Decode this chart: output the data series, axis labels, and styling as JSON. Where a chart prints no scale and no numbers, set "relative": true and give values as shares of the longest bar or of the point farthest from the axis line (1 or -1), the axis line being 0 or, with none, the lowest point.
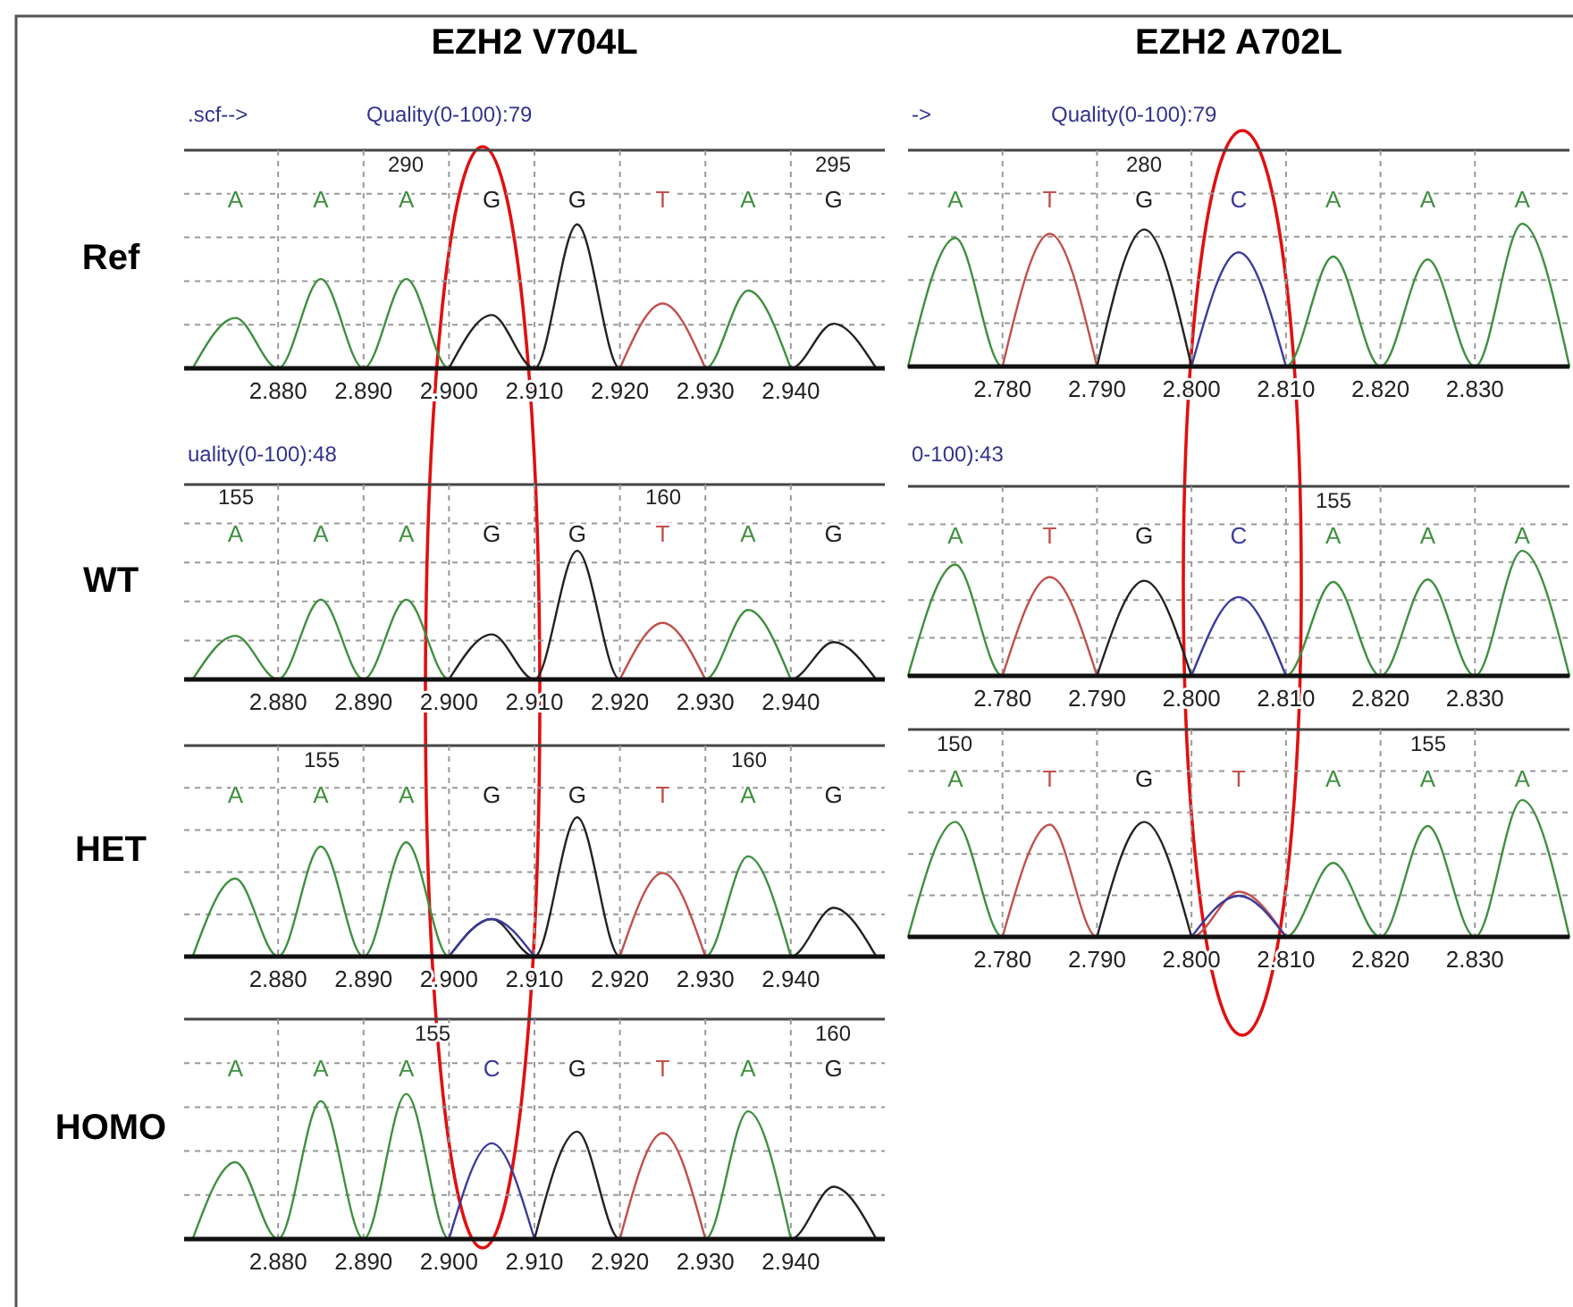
{
  "chart_data": [
    {
      "type": "line",
      "relative": true,
      "title": "EZH2 V704L",
      "ylabel": "Ref",
      "grid": true,
      "xlim": [
        2.869,
        2.951
      ],
      "xticks": [
        {
          "value": 2.88,
          "label": "2.880"
        },
        {
          "value": 2.89,
          "label": "2.890"
        },
        {
          "value": 2.9,
          "label": "2.900"
        },
        {
          "value": 2.91,
          "label": "2.910"
        },
        {
          "value": 2.92,
          "label": "2.920"
        },
        {
          "value": 2.93,
          "label": "2.930"
        },
        {
          "value": 2.94,
          "label": "2.940"
        }
      ],
      "series": [
        {
          "color": "#3f8f3f",
          "x": [
            2.87,
            2.875,
            2.88,
            2.885,
            2.89,
            2.895,
            2.9,
            2.93,
            2.935,
            2.94
          ],
          "values": [
            0,
            0.35,
            0,
            0.62,
            0,
            0.62,
            0,
            0,
            0.54,
            0
          ]
        },
        {
          "color": "#222222",
          "x": [
            2.9,
            2.905,
            2.91,
            2.915,
            2.92,
            2.94,
            2.945,
            2.95
          ],
          "values": [
            0,
            0.37,
            0,
            1,
            0,
            0,
            0.31,
            0
          ]
        },
        {
          "color": "#c0504d",
          "x": [
            2.92,
            2.925,
            2.93
          ],
          "values": [
            0,
            0.45,
            0
          ]
        }
      ],
      "annotations": [
        ".scf-->",
        "Quality(0-100):79",
        "290",
        "295",
        "A",
        "A",
        "A",
        "G",
        "G",
        "T",
        "A",
        "G"
      ]
    },
    {
      "type": "line",
      "relative": true,
      "title": "EZH2 A702L",
      "grid": true,
      "xlim": [
        2.77,
        2.84
      ],
      "xticks": [
        {
          "value": 2.78,
          "label": "2.780"
        },
        {
          "value": 2.79,
          "label": "2.790"
        },
        {
          "value": 2.8,
          "label": "2.800"
        },
        {
          "value": 2.81,
          "label": "2.810"
        },
        {
          "value": 2.82,
          "label": "2.820"
        },
        {
          "value": 2.83,
          "label": "2.830"
        }
      ],
      "series": [
        {
          "color": "#3f8f3f",
          "x": [
            2.77,
            2.775,
            2.78,
            2.81,
            2.815,
            2.82,
            2.825,
            2.83,
            2.835,
            2.84
          ],
          "values": [
            0,
            0.9,
            0,
            0,
            0.77,
            0,
            0.75,
            0,
            1,
            0
          ]
        },
        {
          "color": "#c0504d",
          "x": [
            2.78,
            2.785,
            2.79
          ],
          "values": [
            0,
            0.93,
            0
          ]
        },
        {
          "color": "#222222",
          "x": [
            2.79,
            2.795,
            2.8
          ],
          "values": [
            0,
            0.96,
            0
          ]
        },
        {
          "color": "#3b3b9a",
          "x": [
            2.8,
            2.805,
            2.81
          ],
          "values": [
            0,
            0.8,
            0
          ]
        }
      ],
      "annotations": [
        "->",
        "Quality(0-100):79",
        "280",
        "A",
        "T",
        "G",
        "C",
        "A",
        "A",
        "A"
      ]
    },
    {
      "type": "line",
      "relative": true,
      "ylabel": "WT",
      "grid": true,
      "xlim": [
        2.869,
        2.951
      ],
      "xticks": [
        {
          "value": 2.88,
          "label": "2.880"
        },
        {
          "value": 2.89,
          "label": "2.890"
        },
        {
          "value": 2.9,
          "label": "2.900"
        },
        {
          "value": 2.91,
          "label": "2.910"
        },
        {
          "value": 2.92,
          "label": "2.920"
        },
        {
          "value": 2.93,
          "label": "2.930"
        },
        {
          "value": 2.94,
          "label": "2.940"
        }
      ],
      "series": [
        {
          "color": "#3f8f3f",
          "x": [
            2.87,
            2.875,
            2.88,
            2.885,
            2.89,
            2.895,
            2.9,
            2.93,
            2.935,
            2.94
          ],
          "values": [
            0,
            0.34,
            0,
            0.62,
            0,
            0.62,
            0,
            0,
            0.54,
            0
          ]
        },
        {
          "color": "#222222",
          "x": [
            2.9,
            2.905,
            2.91,
            2.915,
            2.92,
            2.94,
            2.945,
            2.95
          ],
          "values": [
            0,
            0.35,
            0,
            1,
            0,
            0,
            0.29,
            0
          ]
        },
        {
          "color": "#c0504d",
          "x": [
            2.92,
            2.925,
            2.93
          ],
          "values": [
            0,
            0.44,
            0
          ]
        }
      ],
      "annotations": [
        "uality(0-100):48",
        "155",
        "160",
        "A",
        "A",
        "A",
        "G",
        "G",
        "T",
        "A",
        "G"
      ]
    },
    {
      "type": "line",
      "relative": true,
      "grid": true,
      "xlim": [
        2.77,
        2.84
      ],
      "xticks": [
        {
          "value": 2.78,
          "label": "2.780"
        },
        {
          "value": 2.79,
          "label": "2.790"
        },
        {
          "value": 2.8,
          "label": "2.800"
        },
        {
          "value": 2.81,
          "label": "2.810"
        },
        {
          "value": 2.82,
          "label": "2.820"
        },
        {
          "value": 2.83,
          "label": "2.830"
        }
      ],
      "series": [
        {
          "color": "#3f8f3f",
          "x": [
            2.77,
            2.775,
            2.78,
            2.81,
            2.815,
            2.82,
            2.825,
            2.83,
            2.835,
            2.84
          ],
          "values": [
            0,
            0.89,
            0,
            0,
            0.75,
            0,
            0.77,
            0,
            1,
            0
          ]
        },
        {
          "color": "#c0504d",
          "x": [
            2.78,
            2.785,
            2.79
          ],
          "values": [
            0,
            0.79,
            0
          ]
        },
        {
          "color": "#222222",
          "x": [
            2.79,
            2.795,
            2.8
          ],
          "values": [
            0,
            0.76,
            0
          ]
        },
        {
          "color": "#3b3b9a",
          "x": [
            2.8,
            2.805,
            2.81
          ],
          "values": [
            0,
            0.63,
            0
          ]
        }
      ],
      "annotations": [
        "0-100):43",
        "155",
        "A",
        "T",
        "G",
        "C",
        "A",
        "A",
        "A"
      ]
    },
    {
      "type": "line",
      "relative": true,
      "ylabel": "HET",
      "grid": true,
      "xlim": [
        2.869,
        2.951
      ],
      "xticks": [
        {
          "value": 2.88,
          "label": "2.880"
        },
        {
          "value": 2.89,
          "label": "2.890"
        },
        {
          "value": 2.9,
          "label": "2.900"
        },
        {
          "value": 2.91,
          "label": "2.910"
        },
        {
          "value": 2.92,
          "label": "2.920"
        },
        {
          "value": 2.93,
          "label": "2.930"
        },
        {
          "value": 2.94,
          "label": "2.940"
        }
      ],
      "series": [
        {
          "color": "#3f8f3f",
          "x": [
            2.87,
            2.875,
            2.88,
            2.885,
            2.89,
            2.895,
            2.9,
            2.93,
            2.935,
            2.94
          ],
          "values": [
            0,
            0.56,
            0,
            0.79,
            0,
            0.82,
            0,
            0,
            0.72,
            0
          ]
        },
        {
          "color": "#222222",
          "x": [
            2.9,
            2.905,
            2.91,
            2.915,
            2.92,
            2.94,
            2.945,
            2.95
          ],
          "values": [
            0,
            0.27,
            0,
            1,
            0,
            0,
            0.35,
            0
          ]
        },
        {
          "color": "#3b3b9a",
          "x": [
            2.9,
            2.905,
            2.91
          ],
          "values": [
            0,
            0.27,
            0
          ]
        },
        {
          "color": "#c0504d",
          "x": [
            2.92,
            2.925,
            2.93
          ],
          "values": [
            0,
            0.6,
            0
          ]
        }
      ],
      "annotations": [
        "155",
        "160",
        "A",
        "A",
        "A",
        "G",
        "G",
        "T",
        "A",
        "G"
      ]
    },
    {
      "type": "line",
      "relative": true,
      "grid": true,
      "xlim": [
        2.77,
        2.84
      ],
      "xticks": [
        {
          "value": 2.78,
          "label": "2.780"
        },
        {
          "value": 2.79,
          "label": "2.790"
        },
        {
          "value": 2.8,
          "label": "2.800"
        },
        {
          "value": 2.81,
          "label": "2.810"
        },
        {
          "value": 2.82,
          "label": "2.820"
        },
        {
          "value": 2.83,
          "label": "2.830"
        }
      ],
      "series": [
        {
          "color": "#3f8f3f",
          "x": [
            2.77,
            2.775,
            2.78,
            2.81,
            2.815,
            2.82,
            2.825,
            2.83,
            2.835,
            2.84
          ],
          "values": [
            0,
            0.84,
            0,
            0,
            0.54,
            0,
            0.81,
            0,
            1,
            0
          ]
        },
        {
          "color": "#c0504d",
          "x": [
            2.78,
            2.785,
            2.79,
            2.8,
            2.805,
            2.81
          ],
          "values": [
            0,
            0.82,
            0,
            0,
            0.33,
            0
          ]
        },
        {
          "color": "#222222",
          "x": [
            2.79,
            2.795,
            2.8
          ],
          "values": [
            0,
            0.84,
            0
          ]
        },
        {
          "color": "#3b3b9a",
          "x": [
            2.8,
            2.805,
            2.81
          ],
          "values": [
            0,
            0.3,
            0
          ]
        }
      ],
      "annotations": [
        "150",
        "155",
        "A",
        "T",
        "G",
        "T",
        "A",
        "A",
        "A"
      ]
    },
    {
      "type": "line",
      "relative": true,
      "ylabel": "HOMO",
      "grid": true,
      "xlim": [
        2.869,
        2.951
      ],
      "xticks": [
        {
          "value": 2.88,
          "label": "2.880"
        },
        {
          "value": 2.89,
          "label": "2.890"
        },
        {
          "value": 2.9,
          "label": "2.900"
        },
        {
          "value": 2.91,
          "label": "2.910"
        },
        {
          "value": 2.92,
          "label": "2.920"
        },
        {
          "value": 2.93,
          "label": "2.930"
        },
        {
          "value": 2.94,
          "label": "2.940"
        }
      ],
      "series": [
        {
          "color": "#3f8f3f",
          "x": [
            2.87,
            2.875,
            2.88,
            2.885,
            2.89,
            2.895,
            2.9,
            2.93,
            2.935,
            2.94
          ],
          "values": [
            0,
            0.53,
            0,
            0.95,
            0,
            1,
            0,
            0,
            0.88,
            0
          ]
        },
        {
          "color": "#3b3b9a",
          "x": [
            2.9,
            2.905,
            2.91
          ],
          "values": [
            0,
            0.66,
            0
          ]
        },
        {
          "color": "#222222",
          "x": [
            2.91,
            2.915,
            2.92,
            2.94,
            2.945,
            2.95
          ],
          "values": [
            0,
            0.74,
            0,
            0,
            0.36,
            0
          ]
        },
        {
          "color": "#c0504d",
          "x": [
            2.92,
            2.925,
            2.93
          ],
          "values": [
            0,
            0.73,
            0
          ]
        }
      ],
      "annotations": [
        "155",
        "160",
        "A",
        "A",
        "A",
        "C",
        "G",
        "T",
        "A",
        "G"
      ]
    }
  ]
}
